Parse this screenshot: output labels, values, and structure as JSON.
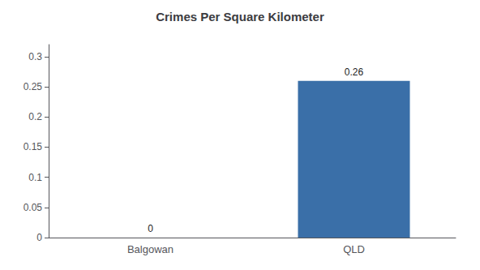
{
  "chart_data": {
    "type": "bar",
    "title": "Crimes Per Square Kilometer",
    "categories": [
      "Balgowan",
      "QLD"
    ],
    "values": [
      0,
      0.26
    ],
    "color": "#3a6fa8",
    "ylim": [
      0,
      0.32
    ],
    "yticks": [
      0,
      0.05,
      0.1,
      0.15,
      0.2,
      0.25,
      0.3
    ],
    "grid": false,
    "data_labels": true
  }
}
